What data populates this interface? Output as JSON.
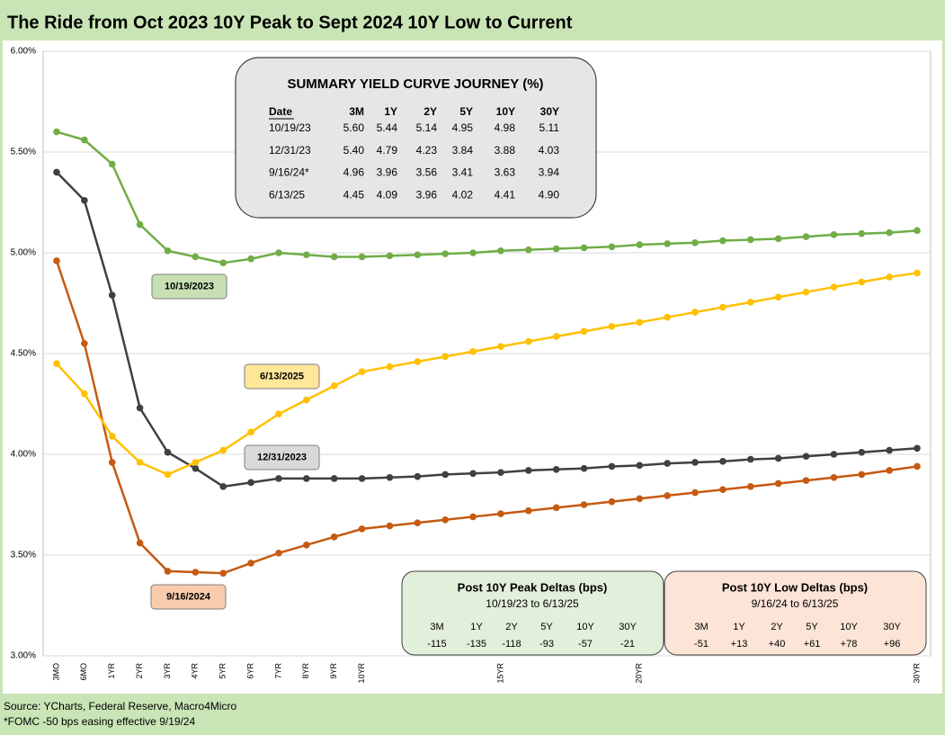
{
  "chart_data": {
    "type": "line",
    "title": "The Ride from Oct 2023 10Y Peak to Sept 2024 10Y Low to Current",
    "categories": [
      "3MO",
      "6MO",
      "1YR",
      "2YR",
      "3YR",
      "4YR",
      "5YR",
      "6YR",
      "7YR",
      "8YR",
      "9YR",
      "10YR",
      null,
      null,
      null,
      null,
      "15YR",
      null,
      null,
      null,
      null,
      "20YR",
      null,
      null,
      null,
      null,
      null,
      null,
      null,
      null,
      null,
      "30YR"
    ],
    "ylim": [
      3,
      6
    ],
    "yticks": [
      {
        "value": 3,
        "label": "3.00%"
      },
      {
        "value": 3.5,
        "label": "3.50%"
      },
      {
        "value": 4,
        "label": "4.00%"
      },
      {
        "value": 4.5,
        "label": "4.50%"
      },
      {
        "value": 5,
        "label": "5.00%"
      },
      {
        "value": 5.5,
        "label": "5.50%"
      },
      {
        "value": 6,
        "label": "6.00%"
      }
    ],
    "grid": true,
    "series": [
      {
        "name": "10/19/2023",
        "color": "#70ad47",
        "label_fill": "#c6e0b4",
        "values": [
          5.6,
          5.56,
          5.44,
          5.14,
          5.01,
          4.98,
          4.95,
          4.97,
          5.0,
          4.99,
          4.98,
          4.98,
          4.985,
          4.99,
          4.995,
          5.0,
          5.01,
          5.015,
          5.02,
          5.025,
          5.03,
          5.04,
          5.045,
          5.05,
          5.06,
          5.065,
          5.07,
          5.08,
          5.09,
          5.095,
          5.1,
          5.11
        ]
      },
      {
        "name": "12/31/2023",
        "color": "#404040",
        "label_fill": "#d9d9d9",
        "values": [
          5.4,
          5.26,
          4.79,
          4.23,
          4.01,
          3.93,
          3.84,
          3.86,
          3.88,
          3.88,
          3.88,
          3.88,
          3.885,
          3.89,
          3.9,
          3.905,
          3.91,
          3.92,
          3.925,
          3.93,
          3.94,
          3.945,
          3.955,
          3.96,
          3.965,
          3.975,
          3.98,
          3.99,
          4.0,
          4.01,
          4.02,
          4.03
        ]
      },
      {
        "name": "9/16/2024",
        "color": "#c55a11",
        "label_fill": "#f8cbad",
        "values": [
          4.96,
          4.55,
          3.96,
          3.56,
          3.42,
          3.415,
          3.41,
          3.46,
          3.51,
          3.55,
          3.59,
          3.63,
          3.645,
          3.66,
          3.675,
          3.69,
          3.705,
          3.72,
          3.735,
          3.75,
          3.765,
          3.78,
          3.795,
          3.81,
          3.825,
          3.84,
          3.855,
          3.87,
          3.885,
          3.9,
          3.92,
          3.94
        ]
      },
      {
        "name": "6/13/2025",
        "color": "#ffc000",
        "label_fill": "#ffe699",
        "values": [
          4.45,
          4.3,
          4.09,
          3.96,
          3.9,
          3.96,
          4.02,
          4.11,
          4.2,
          4.27,
          4.34,
          4.41,
          4.435,
          4.46,
          4.485,
          4.51,
          4.535,
          4.56,
          4.585,
          4.61,
          4.635,
          4.655,
          4.68,
          4.705,
          4.73,
          4.755,
          4.78,
          4.805,
          4.83,
          4.855,
          4.88,
          4.9
        ]
      }
    ],
    "summary_table": {
      "title": "SUMMARY YIELD CURVE JOURNEY (%)",
      "header": [
        "Date",
        "3M",
        "1Y",
        "2Y",
        "5Y",
        "10Y",
        "30Y"
      ],
      "rows": [
        [
          "10/19/23",
          "5.60",
          "5.44",
          "5.14",
          "4.95",
          "4.98",
          "5.11"
        ],
        [
          "12/31/23",
          "5.40",
          "4.79",
          "4.23",
          "3.84",
          "3.88",
          "4.03"
        ],
        [
          "9/16/24*",
          "4.96",
          "3.96",
          "3.56",
          "3.41",
          "3.63",
          "3.94"
        ],
        [
          "6/13/25",
          "4.45",
          "4.09",
          "3.96",
          "4.02",
          "4.41",
          "4.90"
        ]
      ]
    },
    "peak_deltas": {
      "title": "Post 10Y Peak Deltas (bps)",
      "subtitle": "10/19/23 to 6/13/25",
      "header": [
        "3M",
        "1Y",
        "2Y",
        "5Y",
        "10Y",
        "30Y"
      ],
      "values": [
        "-115",
        "-135",
        "-118",
        "-93",
        "-57",
        "-21"
      ]
    },
    "low_deltas": {
      "title": "Post 10Y Low Deltas (bps)",
      "subtitle": "9/16/24 to 6/13/25",
      "header": [
        "3M",
        "1Y",
        "2Y",
        "5Y",
        "10Y",
        "30Y"
      ],
      "values": [
        "-51",
        "+13",
        "+40",
        "+61",
        "+78",
        "+96"
      ]
    },
    "notes": [
      "Source: YCharts, Federal Reserve, Macro4Micro",
      "*FOMC -50 bps easing effective  9/19/24"
    ]
  }
}
